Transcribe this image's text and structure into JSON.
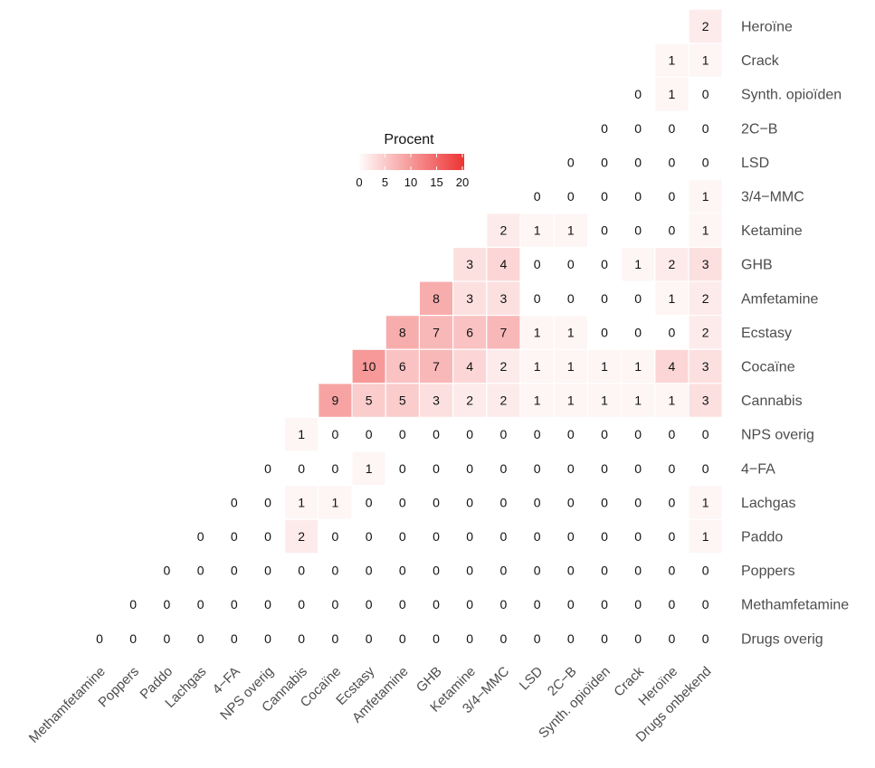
{
  "chart_data": {
    "type": "heatmap",
    "legend": {
      "title": "Procent",
      "ticks": [
        0,
        5,
        10,
        15,
        20
      ],
      "range": [
        0,
        20
      ],
      "color_low": "#ffffff",
      "color_high": "#ee3333"
    },
    "row_labels": [
      "Heroïne",
      "Crack",
      "Synth. opioïden",
      "2C−B",
      "LSD",
      "3/4−MMC",
      "Ketamine",
      "GHB",
      "Amfetamine",
      "Ecstasy",
      "Cocaïne",
      "Cannabis",
      "NPS overig",
      "4−FA",
      "Lachgas",
      "Paddo",
      "Poppers",
      "Methamfetamine",
      "Drugs overig"
    ],
    "col_labels": [
      "Methamfetamine",
      "Poppers",
      "Paddo",
      "Lachgas",
      "4−FA",
      "NPS overig",
      "Cannabis",
      "Cocaïne",
      "Ecstasy",
      "Amfetamine",
      "GHB",
      "Ketamine",
      "3/4−MMC",
      "LSD",
      "2C−B",
      "Synth. opioïden",
      "Crack",
      "Heroïne",
      "Drugs onbekend"
    ],
    "values": [
      [
        null,
        null,
        null,
        null,
        null,
        null,
        null,
        null,
        null,
        null,
        null,
        null,
        null,
        null,
        null,
        null,
        null,
        null,
        2
      ],
      [
        null,
        null,
        null,
        null,
        null,
        null,
        null,
        null,
        null,
        null,
        null,
        null,
        null,
        null,
        null,
        null,
        null,
        1,
        1
      ],
      [
        null,
        null,
        null,
        null,
        null,
        null,
        null,
        null,
        null,
        null,
        null,
        null,
        null,
        null,
        null,
        null,
        0,
        1,
        0
      ],
      [
        null,
        null,
        null,
        null,
        null,
        null,
        null,
        null,
        null,
        null,
        null,
        null,
        null,
        null,
        null,
        0,
        0,
        0,
        0
      ],
      [
        null,
        null,
        null,
        null,
        null,
        null,
        null,
        null,
        null,
        null,
        null,
        null,
        null,
        null,
        0,
        0,
        0,
        0,
        0
      ],
      [
        null,
        null,
        null,
        null,
        null,
        null,
        null,
        null,
        null,
        null,
        null,
        null,
        null,
        0,
        0,
        0,
        0,
        0,
        1
      ],
      [
        null,
        null,
        null,
        null,
        null,
        null,
        null,
        null,
        null,
        null,
        null,
        null,
        2,
        1,
        1,
        0,
        0,
        0,
        1
      ],
      [
        null,
        null,
        null,
        null,
        null,
        null,
        null,
        null,
        null,
        null,
        null,
        3,
        4,
        0,
        0,
        0,
        1,
        2,
        3
      ],
      [
        null,
        null,
        null,
        null,
        null,
        null,
        null,
        null,
        null,
        null,
        8,
        3,
        3,
        0,
        0,
        0,
        0,
        1,
        2
      ],
      [
        null,
        null,
        null,
        null,
        null,
        null,
        null,
        null,
        null,
        8,
        7,
        6,
        7,
        1,
        1,
        0,
        0,
        0,
        2
      ],
      [
        null,
        null,
        null,
        null,
        null,
        null,
        null,
        null,
        10,
        6,
        7,
        4,
        2,
        1,
        1,
        1,
        1,
        4,
        3
      ],
      [
        null,
        null,
        null,
        null,
        null,
        null,
        null,
        9,
        5,
        5,
        3,
        2,
        2,
        1,
        1,
        1,
        1,
        1,
        3
      ],
      [
        null,
        null,
        null,
        null,
        null,
        null,
        1,
        0,
        0,
        0,
        0,
        0,
        0,
        0,
        0,
        0,
        0,
        0,
        0
      ],
      [
        null,
        null,
        null,
        null,
        null,
        0,
        0,
        0,
        1,
        0,
        0,
        0,
        0,
        0,
        0,
        0,
        0,
        0,
        0
      ],
      [
        null,
        null,
        null,
        null,
        0,
        0,
        1,
        1,
        0,
        0,
        0,
        0,
        0,
        0,
        0,
        0,
        0,
        0,
        1
      ],
      [
        null,
        null,
        null,
        0,
        0,
        0,
        2,
        0,
        0,
        0,
        0,
        0,
        0,
        0,
        0,
        0,
        0,
        0,
        1
      ],
      [
        null,
        null,
        0,
        0,
        0,
        0,
        0,
        0,
        0,
        0,
        0,
        0,
        0,
        0,
        0,
        0,
        0,
        0,
        0
      ],
      [
        null,
        0,
        0,
        0,
        0,
        0,
        0,
        0,
        0,
        0,
        0,
        0,
        0,
        0,
        0,
        0,
        0,
        0,
        0
      ],
      [
        0,
        0,
        0,
        0,
        0,
        0,
        0,
        0,
        0,
        0,
        0,
        0,
        0,
        0,
        0,
        0,
        0,
        0,
        0
      ]
    ]
  }
}
